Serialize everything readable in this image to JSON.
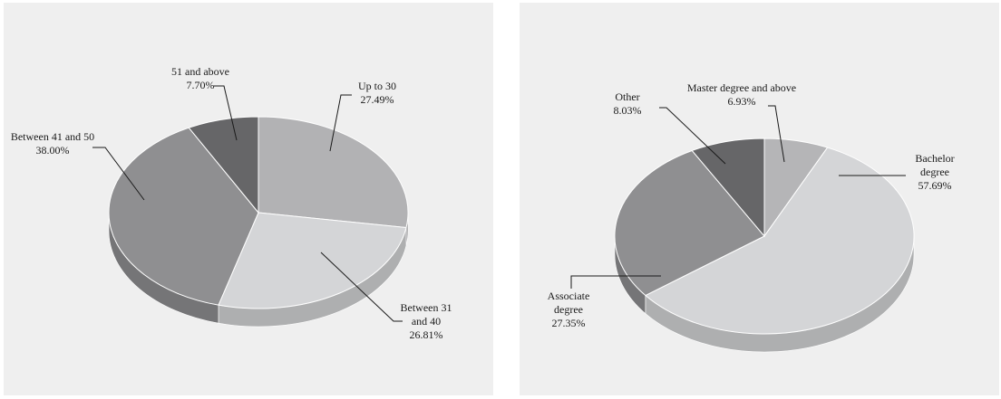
{
  "chart_data": [
    {
      "type": "pie",
      "labels": [
        "Up to 30",
        "Between 31 and 40",
        "Between 41 and 50",
        "51 and above"
      ],
      "label_lines": [
        [
          "Up to 30"
        ],
        [
          "Between 31",
          "and 40"
        ],
        [
          "Between 41 and 50"
        ],
        [
          "51 and above"
        ]
      ],
      "values": [
        27.49,
        26.81,
        38.0,
        7.7
      ],
      "value_labels": [
        "27.49%",
        "26.81%",
        "38.00%",
        "7.70%"
      ],
      "colors": [
        "#b2b2b4",
        "#d4d5d7",
        "#8f8f91",
        "#666668"
      ]
    },
    {
      "type": "pie",
      "labels": [
        "Master degree and above",
        "Bachelor degree",
        "Associate degree",
        "Other"
      ],
      "label_lines": [
        [
          "Master degree and above"
        ],
        [
          "Bachelor",
          "degree"
        ],
        [
          "Associate",
          "degree"
        ],
        [
          "Other"
        ]
      ],
      "values": [
        6.93,
        57.69,
        27.35,
        8.03
      ],
      "value_labels": [
        "6.93%",
        "57.69%",
        "27.35%",
        "8.03%"
      ],
      "colors": [
        "#b5b5b7",
        "#d4d5d7",
        "#8f8f91",
        "#666668"
      ]
    }
  ]
}
